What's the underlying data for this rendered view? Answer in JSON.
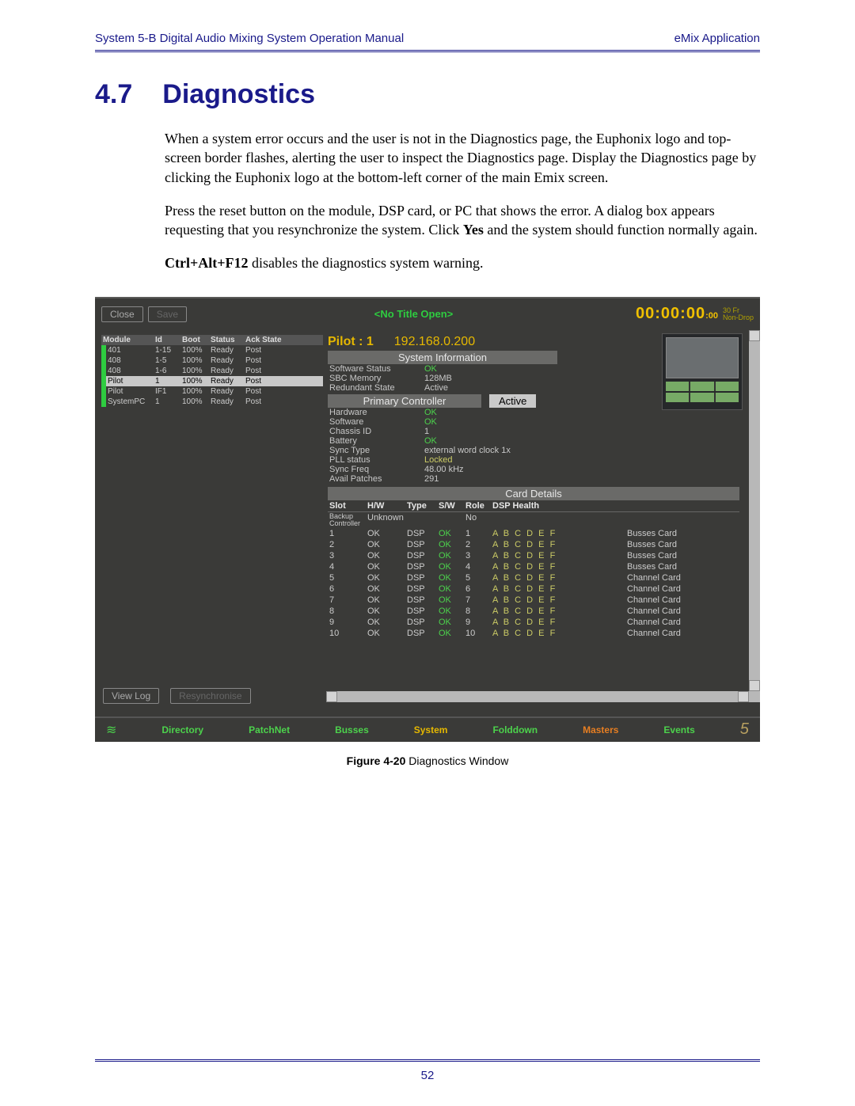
{
  "page": {
    "header_left": "System 5-B Digital Audio Mixing System Operation Manual",
    "header_right": "eMix Application",
    "section_number": "4.7",
    "section_title": "Diagnostics",
    "para1": "When a system error occurs and the user is not in the Diagnostics page, the Euphonix logo and top-screen border flashes, alerting the user to inspect the Diagnostics page. Display the Diagnostics page by clicking the Euphonix logo at the bottom-left corner of the main Emix screen.",
    "para2a": "Press the reset button on the module, DSP card, or PC that shows the error. A dialog box appears requesting that you resynchronize the system. Click ",
    "para2b": "Yes",
    "para2c": " and the system should function normally again.",
    "para3a": "Ctrl+Alt+F12",
    "para3b": " disables the diagnostics system warning.",
    "figure_label": "Figure 4-20",
    "figure_text": " Diagnostics Window",
    "page_number": "52"
  },
  "shot": {
    "colors": {
      "bg": "#3a3a38",
      "green": "#2ecc40",
      "yellow": "#e6b800",
      "ok_green": "#4cd24c",
      "muted_yellow": "#cccc66"
    },
    "buttons": {
      "close": "Close",
      "save": "Save",
      "view_log": "View Log",
      "resync": "Resynchronise"
    },
    "title": "<No Title Open>",
    "timecode": "00:00:00",
    "timecode_frames": ":00",
    "tc_fr": "30 Fr",
    "tc_drop": "Non-Drop",
    "list": {
      "headers": [
        "Module",
        "Id",
        "Boot",
        "Status",
        "Ack State"
      ],
      "rows": [
        {
          "m": "401",
          "id": "1-15",
          "boot": "100%",
          "status": "Ready",
          "ack": "Post",
          "sel": false
        },
        {
          "m": "408",
          "id": "1-5",
          "boot": "100%",
          "status": "Ready",
          "ack": "Post",
          "sel": false
        },
        {
          "m": "408",
          "id": "1-6",
          "boot": "100%",
          "status": "Ready",
          "ack": "Post",
          "sel": false
        },
        {
          "m": "Pilot",
          "id": "1",
          "boot": "100%",
          "status": "Ready",
          "ack": "Post",
          "sel": true
        },
        {
          "m": "Pilot",
          "id": "IF1",
          "boot": "100%",
          "status": "Ready",
          "ack": "Post",
          "sel": false
        },
        {
          "m": "SystemPC",
          "id": "1",
          "boot": "100%",
          "status": "Ready",
          "ack": "Post",
          "sel": false
        }
      ]
    },
    "info": {
      "pilot_label": "Pilot : 1",
      "ip": "192.168.0.200",
      "sys_info_title": "System Information",
      "sw_status_k": "Software Status",
      "sw_status_v": "OK",
      "sbc_mem_k": "SBC Memory",
      "sbc_mem_v": "128MB",
      "red_state_k": "Redundant State",
      "red_state_v": "Active",
      "primary_title": "Primary Controller",
      "active": "Active",
      "hw_k": "Hardware",
      "hw_v": "OK",
      "sw_k": "Software",
      "sw_v": "OK",
      "ch_k": "Chassis ID",
      "ch_v": "1",
      "bat_k": "Battery",
      "bat_v": "OK",
      "sync_k": "Sync Type",
      "sync_v": "external word clock 1x",
      "pll_k": "PLL status",
      "pll_v": "Locked",
      "sf_k": "Sync Freq",
      "sf_v": "48.00 kHz",
      "ap_k": "Avail Patches",
      "ap_v": "291"
    },
    "cards": {
      "title": "Card Details",
      "headers": [
        "Slot",
        "H/W",
        "Type",
        "S/W",
        "Role",
        "DSP Health",
        ""
      ],
      "backup_row": {
        "slot": "Backup Controller",
        "hw": "Unknown",
        "type": "",
        "sw": "",
        "role": "No",
        "dsp": "",
        "desc": ""
      },
      "rows": [
        {
          "slot": "1",
          "hw": "OK",
          "type": "DSP",
          "sw": "OK",
          "role": "1",
          "dsp": "A B C D E F",
          "desc": "Busses Card"
        },
        {
          "slot": "2",
          "hw": "OK",
          "type": "DSP",
          "sw": "OK",
          "role": "2",
          "dsp": "A B C D E F",
          "desc": "Busses Card"
        },
        {
          "slot": "3",
          "hw": "OK",
          "type": "DSP",
          "sw": "OK",
          "role": "3",
          "dsp": "A B C D E F",
          "desc": "Busses Card"
        },
        {
          "slot": "4",
          "hw": "OK",
          "type": "DSP",
          "sw": "OK",
          "role": "4",
          "dsp": "A B C D E F",
          "desc": "Busses Card"
        },
        {
          "slot": "5",
          "hw": "OK",
          "type": "DSP",
          "sw": "OK",
          "role": "5",
          "dsp": "A B C D E F",
          "desc": "Channel Card"
        },
        {
          "slot": "6",
          "hw": "OK",
          "type": "DSP",
          "sw": "OK",
          "role": "6",
          "dsp": "A B C D E F",
          "desc": "Channel Card"
        },
        {
          "slot": "7",
          "hw": "OK",
          "type": "DSP",
          "sw": "OK",
          "role": "7",
          "dsp": "A B C D E F",
          "desc": "Channel Card"
        },
        {
          "slot": "8",
          "hw": "OK",
          "type": "DSP",
          "sw": "OK",
          "role": "8",
          "dsp": "A B C D E F",
          "desc": "Channel Card"
        },
        {
          "slot": "9",
          "hw": "OK",
          "type": "DSP",
          "sw": "OK",
          "role": "9",
          "dsp": "A B C D E F",
          "desc": "Channel Card"
        },
        {
          "slot": "10",
          "hw": "OK",
          "type": "DSP",
          "sw": "OK",
          "role": "10",
          "dsp": "A B C D E F",
          "desc": "Channel Card"
        }
      ]
    },
    "nav": {
      "directory": "Directory",
      "patchnet": "PatchNet",
      "busses": "Busses",
      "system": "System",
      "folddown": "Folddown",
      "masters": "Masters",
      "events": "Events"
    }
  }
}
